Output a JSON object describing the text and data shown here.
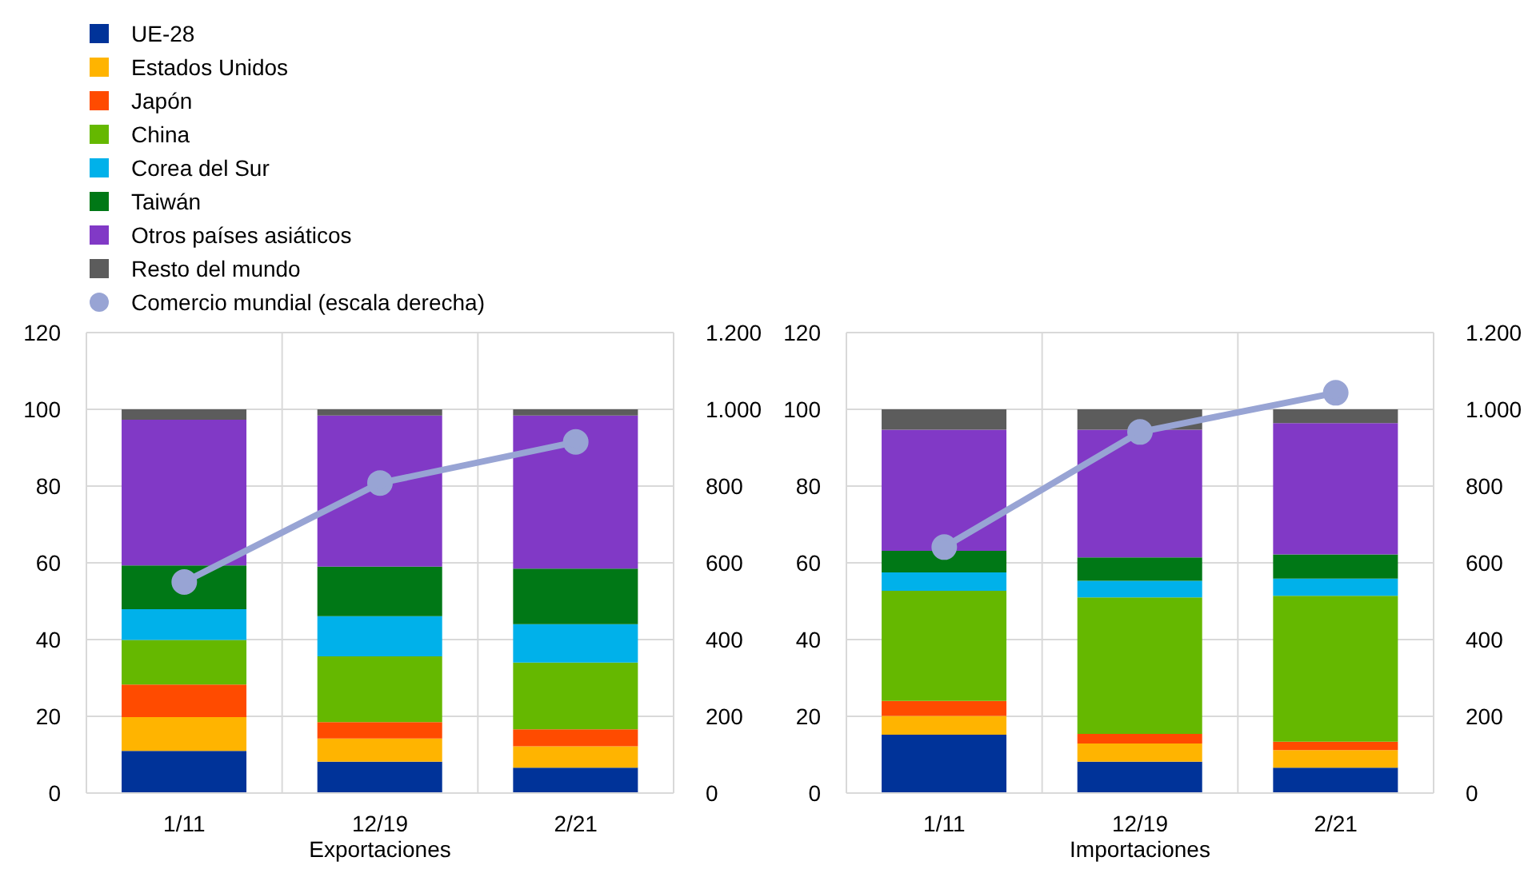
{
  "chart_data": [
    {
      "type": "bar",
      "xlabel": "Exportaciones",
      "stacked": true,
      "categories": [
        "1/11",
        "12/19",
        "2/21"
      ],
      "ylim": [
        0,
        120
      ],
      "yticks": [
        0,
        20,
        40,
        60,
        80,
        100,
        120
      ],
      "y2lim": [
        0,
        1200
      ],
      "y2ticks": [
        {
          "value": 0,
          "label": "0"
        },
        {
          "value": 200,
          "label": "200"
        },
        {
          "value": 400,
          "label": "400"
        },
        {
          "value": 600,
          "label": "600"
        },
        {
          "value": 800,
          "label": "800"
        },
        {
          "value": 1000,
          "label": "1.000"
        },
        {
          "value": 1200,
          "label": "1.200"
        }
      ],
      "grid": true,
      "legend": "top left",
      "series": [
        {
          "name": "UE-28",
          "color": "#003399",
          "values": [
            11,
            8.2,
            6.6
          ]
        },
        {
          "name": "Estados Unidos",
          "color": "#ffb400",
          "values": [
            8.8,
            6,
            5.6
          ]
        },
        {
          "name": "Japón",
          "color": "#ff4b00",
          "values": [
            8.5,
            4.3,
            4.4
          ]
        },
        {
          "name": "China",
          "color": "#65b800",
          "values": [
            11.6,
            17.1,
            17.4
          ]
        },
        {
          "name": "Corea del Sur",
          "color": "#00b1ea",
          "values": [
            8,
            10.5,
            10
          ]
        },
        {
          "name": "Taiwán",
          "color": "#007816",
          "values": [
            11.4,
            12.9,
            14.5
          ]
        },
        {
          "name": "Otros países asiáticos",
          "color": "#8139c6",
          "values": [
            38,
            39.4,
            39.9
          ]
        },
        {
          "name": "Resto del mundo",
          "color": "#5c5c5c",
          "values": [
            2.7,
            1.6,
            1.6
          ]
        },
        {
          "name": "Comercio mundial (escala derecha)",
          "type": "line",
          "axis": "y2",
          "marker": "circle",
          "color": "#98a4d4",
          "values": [
            550,
            808,
            915
          ]
        }
      ]
    },
    {
      "type": "bar",
      "xlabel": "Importaciones",
      "stacked": true,
      "categories": [
        "1/11",
        "12/19",
        "2/21"
      ],
      "ylim": [
        0,
        120
      ],
      "yticks": [
        0,
        20,
        40,
        60,
        80,
        100,
        120
      ],
      "y2lim": [
        0,
        1200
      ],
      "y2ticks": [
        {
          "value": 0,
          "label": "0"
        },
        {
          "value": 200,
          "label": "200"
        },
        {
          "value": 400,
          "label": "400"
        },
        {
          "value": 600,
          "label": "600"
        },
        {
          "value": 800,
          "label": "800"
        },
        {
          "value": 1000,
          "label": "1.000"
        },
        {
          "value": 1200,
          "label": "1.200"
        }
      ],
      "grid": true,
      "series": [
        {
          "color": "#003399",
          "values": [
            15.2,
            8.2,
            6.6
          ]
        },
        {
          "color": "#ffb400",
          "values": [
            4.9,
            4.7,
            4.6
          ]
        },
        {
          "color": "#ff4b00",
          "values": [
            3.9,
            2.5,
            2.2
          ]
        },
        {
          "color": "#65b800",
          "values": [
            28.7,
            35.6,
            38
          ]
        },
        {
          "color": "#00b1ea",
          "values": [
            4.8,
            4.3,
            4.5
          ]
        },
        {
          "color": "#007816",
          "values": [
            5.6,
            6.1,
            6.3
          ]
        },
        {
          "color": "#8139c6",
          "values": [
            31.6,
            33.3,
            34.2
          ]
        },
        {
          "color": "#5c5c5c",
          "values": [
            5.3,
            5.3,
            3.6
          ]
        },
        {
          "type": "line",
          "axis": "y2",
          "marker": "circle",
          "color": "#98a4d4",
          "values": [
            641,
            941,
            1043
          ]
        }
      ]
    }
  ]
}
